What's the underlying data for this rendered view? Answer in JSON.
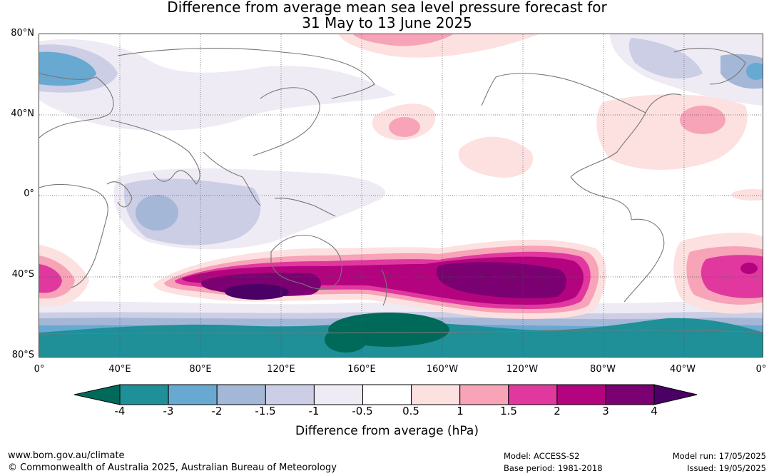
{
  "title_line1": "Difference from average mean sea level pressure forecast for",
  "title_line2": "31 May to 13 June 2025",
  "lat_labels": [
    "80°N",
    "40°N",
    "0°",
    "40°S",
    "80°S"
  ],
  "lon_labels": [
    "0°",
    "40°E",
    "80°E",
    "120°E",
    "160°E",
    "160°W",
    "120°W",
    "80°W",
    "40°W",
    "0°"
  ],
  "legend": {
    "label": "Difference from average (hPa)",
    "ticks": [
      "-4",
      "-3",
      "-2",
      "-1.5",
      "-1",
      "-0.5",
      "0.5",
      "1",
      "1.5",
      "2",
      "3",
      "4"
    ],
    "bins": [
      {
        "range": "< -4",
        "color": "#006a5a"
      },
      {
        "range": "-4 to -3",
        "color": "#1f8f98"
      },
      {
        "range": "-3 to -2",
        "color": "#68a9d2"
      },
      {
        "range": "-2 to -1.5",
        "color": "#a5b7d6"
      },
      {
        "range": "-1.5 to -1",
        "color": "#ccceE6"
      },
      {
        "range": "-1 to -0.5",
        "color": "#efebf4"
      },
      {
        "range": "-0.5 to 0.5",
        "color": "#ffffff"
      },
      {
        "range": "0.5 to 1",
        "color": "#fde0e0"
      },
      {
        "range": "1 to 1.5",
        "color": "#f7a3b8"
      },
      {
        "range": "1.5 to 2",
        "color": "#e0389f"
      },
      {
        "range": "2 to 3",
        "color": "#b4037f"
      },
      {
        "range": "3 to 4",
        "color": "#7b0071"
      },
      {
        "range": "> 4",
        "color": "#4a0065"
      }
    ]
  },
  "footer": {
    "website": "www.bom.gov.au/climate",
    "copyright": "© Commonwealth of Australia 2025, Australian Bureau of Meteorology",
    "model": "Model: ACCESS-S2",
    "base_period": "Base period: 1981-2018",
    "model_run": "Model run: 17/05/2025",
    "issued": "Issued: 19/05/2025"
  }
}
